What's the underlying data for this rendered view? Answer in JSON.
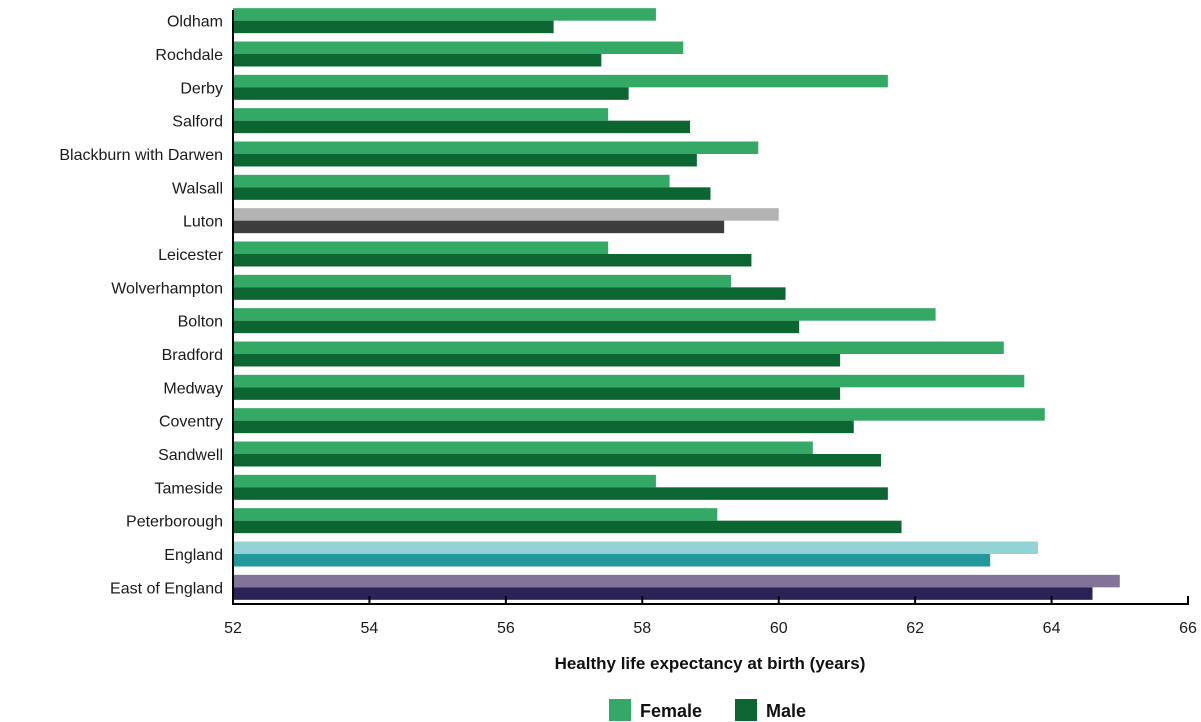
{
  "chart_data": {
    "type": "bar",
    "orientation": "horizontal",
    "title": "",
    "xlabel": "Healthy life expectancy at birth (years)",
    "ylabel": "",
    "xlim": [
      52,
      66
    ],
    "xticks": [
      52,
      54,
      56,
      58,
      60,
      62,
      64,
      66
    ],
    "grid": false,
    "legend_position": "bottom-center",
    "categories": [
      "Oldham",
      "Rochdale",
      "Derby",
      "Salford",
      "Blackburn with Darwen",
      "Walsall",
      "Luton",
      "Leicester",
      "Wolverhampton",
      "Bolton",
      "Bradford",
      "Medway",
      "Coventry",
      "Sandwell",
      "Tameside",
      "Peterborough",
      "England",
      "East of England"
    ],
    "series": [
      {
        "name": "Female",
        "color": "#34a865",
        "values": [
          58.2,
          58.6,
          61.6,
          57.5,
          59.7,
          58.4,
          60.0,
          57.5,
          59.3,
          62.3,
          63.3,
          63.6,
          63.9,
          60.5,
          58.2,
          59.1,
          63.8,
          65.0
        ]
      },
      {
        "name": "Male",
        "color": "#0b6632",
        "values": [
          56.7,
          57.4,
          57.8,
          58.7,
          58.8,
          59.0,
          59.2,
          59.6,
          60.1,
          60.3,
          60.9,
          60.9,
          61.1,
          61.5,
          61.6,
          61.8,
          63.1,
          64.6
        ]
      }
    ],
    "highlight_colors": {
      "Luton": {
        "Female": "#b3b3b3",
        "Male": "#3d3d3d"
      },
      "England": {
        "Female": "#93d3d6",
        "Male": "#22989c"
      },
      "East of England": {
        "Female": "#827499",
        "Male": "#2b2357"
      }
    }
  }
}
